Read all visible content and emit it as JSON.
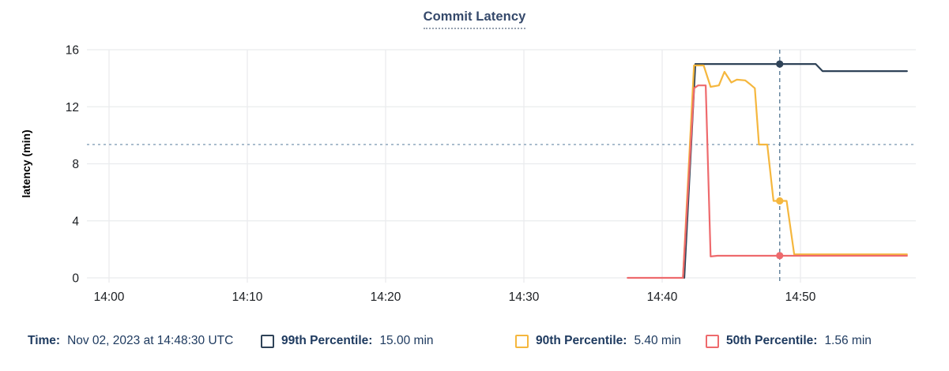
{
  "title": "Commit Latency",
  "chart_data": {
    "type": "line",
    "title": "Commit Latency",
    "xlabel": "",
    "ylabel": "latency (min)",
    "ylim": [
      0,
      16
    ],
    "y_ticks": [
      0,
      4,
      8,
      12,
      16
    ],
    "x_ticks": [
      {
        "minutes": 0,
        "label": "14:00"
      },
      {
        "minutes": 10,
        "label": "14:10"
      },
      {
        "minutes": 20,
        "label": "14:20"
      },
      {
        "minutes": 30,
        "label": "14:30"
      },
      {
        "minutes": 40,
        "label": "14:40"
      },
      {
        "minutes": 50,
        "label": "14:50"
      }
    ],
    "x_domain_minutes": [
      -1.6,
      58.3
    ],
    "grid": true,
    "legend_position": "bottom",
    "threshold_line": {
      "value": 9.35,
      "style": "dotted",
      "color": "#8fa8bd"
    },
    "cursor": {
      "minutes": 48.5,
      "time_label": "14:48:30"
    },
    "series": [
      {
        "name": "99th Percentile",
        "color": "#2f4358",
        "marker_minutes": 48.5,
        "marker_value": 15.0,
        "points": [
          [
            41.6,
            0
          ],
          [
            42.4,
            15.0
          ],
          [
            51.1,
            15.0
          ],
          [
            51.6,
            14.5
          ],
          [
            57.7,
            14.5
          ]
        ]
      },
      {
        "name": "90th Percentile",
        "color": "#f5b73e",
        "marker_minutes": 48.5,
        "marker_value": 5.4,
        "points": [
          [
            41.5,
            0
          ],
          [
            42.3,
            14.9
          ],
          [
            43.0,
            14.9
          ],
          [
            43.5,
            13.4
          ],
          [
            44.1,
            13.5
          ],
          [
            44.5,
            14.45
          ],
          [
            45.0,
            13.7
          ],
          [
            45.4,
            13.9
          ],
          [
            46.0,
            13.85
          ],
          [
            46.4,
            13.55
          ],
          [
            46.7,
            13.3
          ],
          [
            47.0,
            9.35
          ],
          [
            47.6,
            9.35
          ],
          [
            48.05,
            5.4
          ],
          [
            49.0,
            5.4
          ],
          [
            49.55,
            1.65
          ],
          [
            57.7,
            1.65
          ]
        ]
      },
      {
        "name": "50th Percentile",
        "color": "#ee6a6d",
        "marker_minutes": 48.5,
        "marker_value": 1.56,
        "points": [
          [
            37.5,
            0
          ],
          [
            41.5,
            0
          ],
          [
            42.3,
            13.3
          ],
          [
            42.6,
            13.5
          ],
          [
            43.15,
            13.5
          ],
          [
            43.5,
            1.5
          ],
          [
            44.0,
            1.55
          ],
          [
            57.7,
            1.55
          ]
        ]
      }
    ]
  },
  "legend": {
    "time_label": "Time:",
    "time_value": "Nov 02, 2023 at 14:48:30 UTC",
    "entries": [
      {
        "label": "99th Percentile:",
        "value": "15.00 min",
        "color": "#2f4358"
      },
      {
        "label": "90th Percentile:",
        "value": "5.40 min",
        "color": "#f5b73e"
      },
      {
        "label": "50th Percentile:",
        "value": "1.56 min",
        "color": "#ee6a6d"
      }
    ]
  },
  "colors": {
    "grid": "#eaecee",
    "axis_text": "#1a1d21",
    "navy_text": "#1f3b60",
    "cursor": "#5f7f99",
    "threshold": "#8fa8bd"
  }
}
